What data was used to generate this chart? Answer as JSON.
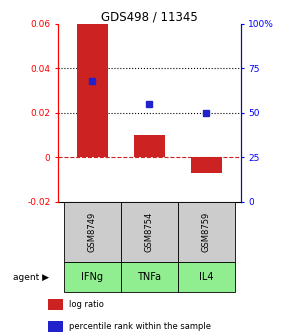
{
  "title": "GDS498 / 11345",
  "samples": [
    "GSM8749",
    "GSM8754",
    "GSM8759"
  ],
  "agents": [
    "IFNg",
    "TNFa",
    "IL4"
  ],
  "log_ratios": [
    0.06,
    0.01,
    -0.007
  ],
  "percentile_ranks": [
    68,
    55,
    50
  ],
  "ylim_left": [
    -0.02,
    0.06
  ],
  "ylim_right": [
    0,
    100
  ],
  "yticks_left": [
    -0.02,
    0.0,
    0.02,
    0.04,
    0.06
  ],
  "ytick_labels_left": [
    "-0.02",
    "0",
    "0.02",
    "0.04",
    "0.06"
  ],
  "yticks_right": [
    0,
    25,
    50,
    75,
    100
  ],
  "ytick_labels_right": [
    "0",
    "25",
    "50",
    "75",
    "100%"
  ],
  "bar_color": "#cc2222",
  "dot_color": "#2222cc",
  "agent_bg_color": "#90ee90",
  "sample_bg_color": "#cccccc",
  "zero_line_color": "#cc2222",
  "bar_width": 0.55,
  "fig_width": 2.9,
  "fig_height": 3.36,
  "dpi": 100
}
